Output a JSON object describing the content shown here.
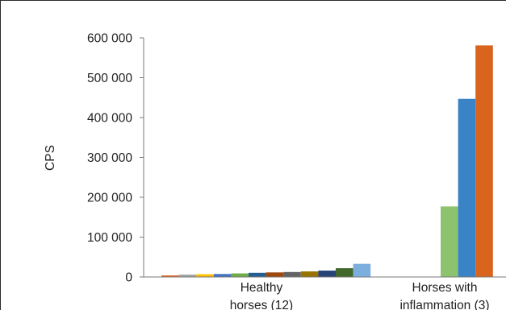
{
  "chart_data": {
    "type": "bar",
    "ylabel": "CPS",
    "xlabel": "",
    "ylim": [
      0,
      600000
    ],
    "y_ticks": [
      {
        "value": 0,
        "label": "0"
      },
      {
        "value": 100000,
        "label": "100 000"
      },
      {
        "value": 200000,
        "label": "200 000"
      },
      {
        "value": 300000,
        "label": "300 000"
      },
      {
        "value": 400000,
        "label": "400 000"
      },
      {
        "value": 500000,
        "label": "500 000"
      },
      {
        "value": 600000,
        "label": "600 000"
      }
    ],
    "grid": false,
    "legend": "none",
    "groups": [
      {
        "label_lines": [
          "Healthy",
          "horses (12)"
        ],
        "values": [
          4000,
          6000,
          7000,
          7500,
          9000,
          10500,
          11500,
          12500,
          14000,
          16000,
          22000,
          33000
        ],
        "colors": [
          "#E26C22",
          "#A5A5A5",
          "#FFC000",
          "#4472C4",
          "#70AD47",
          "#255E91",
          "#9E480E",
          "#636363",
          "#997300",
          "#264478",
          "#43682B",
          "#7CAFDD"
        ]
      },
      {
        "label_lines": [
          "Horses with",
          "inflammation (3)"
        ],
        "values": [
          177000,
          447000,
          581000
        ],
        "colors": [
          "#8DC26F",
          "#3A83C6",
          "#D9641E"
        ]
      }
    ]
  }
}
